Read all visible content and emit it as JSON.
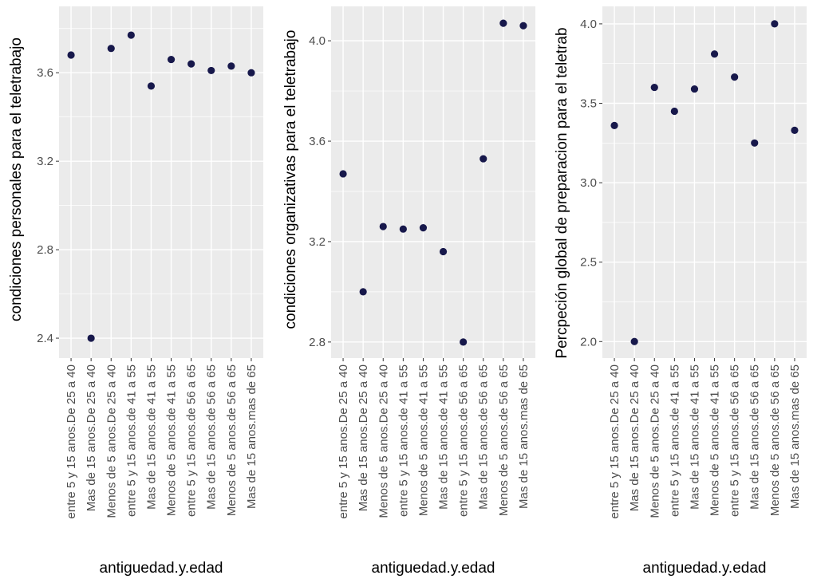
{
  "chart_data": [
    {
      "type": "scatter",
      "xlabel": "antiguedad.y.edad",
      "ylabel": "condiciones personales para el teletrabajo",
      "categories": [
        "entre 5  y 15 anos.De 25 a 40",
        "Mas de 15 anos.De 25 a 40",
        "Menos de 5 anos.De 25 a 40",
        "entre 5  y 15 anos.de 41 a 55",
        "Mas de 15 anos.de 41 a 55",
        "Menos de 5 anos.de 41 a 55",
        "entre 5  y 15 anos.de 56 a 65",
        "Mas de 15 anos.de 56 a 65",
        "Menos de 5 anos.de 56 a 65",
        "Mas de 15 anos.mas de 65"
      ],
      "values": [
        3.68,
        2.4,
        3.71,
        3.77,
        3.54,
        3.66,
        3.64,
        3.61,
        3.63,
        3.6
      ],
      "ylim": [
        2.31,
        3.9
      ],
      "yticks": [
        2.4,
        2.8,
        3.2,
        3.6
      ],
      "ytick_labels": [
        "2.4",
        "2.8",
        "3.2",
        "3.6"
      ],
      "grid": true
    },
    {
      "type": "scatter",
      "xlabel": "antiguedad.y.edad",
      "ylabel": "condiciones organizativas para el teletrabajo",
      "categories": [
        "entre 5  y 15 anos.De 25 a 40",
        "Mas de 15 anos.De 25 a 40",
        "Menos de 5 anos.De 25 a 40",
        "entre 5  y 15 anos.de 41 a 55",
        "Menos de 5 anos.de 41 a 55",
        "Mas de 15 anos.de 41 a 55",
        "entre 5  y 15 anos.de 56 a 65",
        "Mas de 15 anos.de 56 a 65",
        "Menos de 5 anos.de 56 a 65",
        "Mas de 15 anos.mas de 65"
      ],
      "values": [
        3.47,
        3.0,
        3.26,
        3.25,
        3.255,
        3.16,
        2.8,
        3.53,
        4.07,
        4.06
      ],
      "ylim": [
        2.736,
        4.137
      ],
      "yticks": [
        2.8,
        3.2,
        3.6,
        4.0
      ],
      "ytick_labels": [
        "2.8",
        "3.2",
        "3.6",
        "4.0"
      ],
      "grid": true
    },
    {
      "type": "scatter",
      "xlabel": "antiguedad.y.edad",
      "ylabel": "Percpeción global de preparacion para el teletrab",
      "categories": [
        "entre 5  y 15 anos.De 25 a 40",
        "Mas de 15 anos.De 25 a 40",
        "Menos de 5 anos.De 25 a 40",
        "entre 5  y 15 anos.de 41 a 55",
        "Mas de 15 anos.de 41 a 55",
        "Menos de 5 anos.de 41 a 55",
        "entre 5  y 15 anos.de 56 a 65",
        "Mas de 15 anos.de 56 a 65",
        "Menos de 5 anos.de 56 a 65",
        "Mas de 15 anos.mas de 65"
      ],
      "values": [
        3.36,
        2.0,
        3.6,
        3.45,
        3.59,
        3.81,
        3.665,
        3.25,
        4.0,
        3.33
      ],
      "ylim": [
        1.896,
        4.11
      ],
      "yticks": [
        2.0,
        2.5,
        3.0,
        3.5,
        4.0
      ],
      "ytick_labels": [
        "2.0",
        "2.5",
        "3.0",
        "3.5",
        "4.0"
      ],
      "grid": true
    }
  ]
}
